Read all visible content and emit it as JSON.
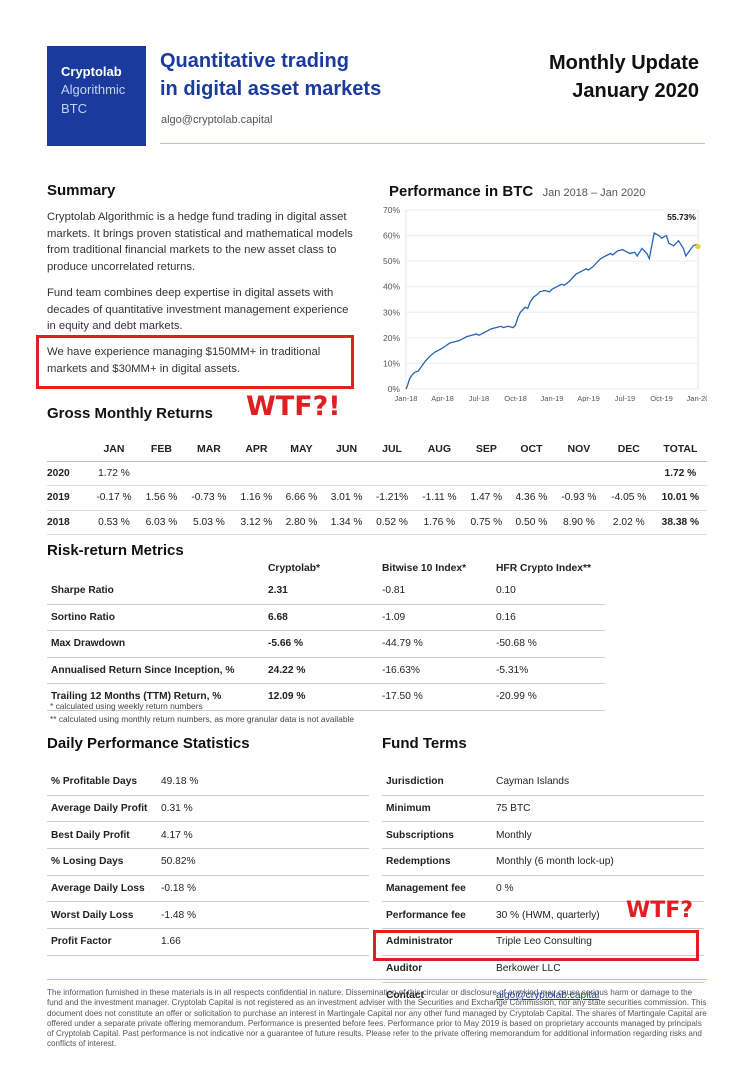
{
  "header": {
    "logo_line1": "Cryptolab",
    "logo_line2": "Algorithmic",
    "logo_line3": "BTC",
    "title_line1": "Quantitative trading",
    "title_line2": "in digital asset markets",
    "email": "algo@cryptolab.capital",
    "update_line1": "Monthly Update",
    "update_line2": "January 2020"
  },
  "summary": {
    "heading": "Summary",
    "para1": "Cryptolab Algorithmic is a hedge fund trading in digital asset markets. It brings proven statistical and mathematical models from traditional financial markets to the new asset class to produce uncorrelated returns.",
    "para2": "Fund team combines deep expertise in digital assets with decades of quantitative investment management experience in equity and debt markets.",
    "para3": "We have experience managing $150MM+ in traditional markets and $30MM+ in digital assets."
  },
  "annotations": {
    "wtf1": "WTF?!",
    "wtf2": "WTF?"
  },
  "performance": {
    "heading": "Performance in BTC",
    "range": "Jan 2018 – Jan 2020",
    "end_label": "55.73%"
  },
  "chart_data": {
    "type": "line",
    "title": "Performance in BTC",
    "subtitle": "Jan 2018 – Jan 2020",
    "y_ticks": [
      "70%",
      "60%",
      "50%",
      "40%",
      "30%",
      "20%",
      "10%",
      "0%"
    ],
    "x_ticks": [
      "Jan-18",
      "Apr-18",
      "Jul-18",
      "Oct-18",
      "Jan-19",
      "Apr-19",
      "Jul-19",
      "Oct-19",
      "Jan-20"
    ],
    "ylim": [
      0,
      70
    ],
    "grid": true,
    "annotation": "55.73%",
    "series": [
      {
        "color": "#2563b8",
        "x": [
          0,
          0.1,
          0.2,
          0.3,
          0.5,
          0.7,
          1,
          1.3,
          1.6,
          2,
          2.4,
          2.8,
          3,
          3.3,
          3.6,
          4,
          4.4,
          4.8,
          5,
          5.4,
          5.8,
          6,
          6.4,
          6.8,
          7,
          7.4,
          7.8,
          8,
          8.4,
          8.8,
          9,
          9.2,
          9.4,
          9.6,
          9.8,
          10,
          10.2,
          10.5,
          10.8,
          11,
          11.4,
          11.8,
          12,
          12.4,
          12.8,
          13,
          13.4,
          13.8,
          14,
          14.4,
          14.8,
          15,
          15.4,
          15.8,
          16,
          16.4,
          16.8,
          17,
          17.4,
          17.8,
          18,
          18.4,
          18.8,
          19,
          19.4,
          19.8,
          20,
          20.4,
          20.8,
          21,
          21.2,
          21.4,
          21.6,
          22,
          22.4,
          22.8,
          23,
          23.3,
          23.6,
          23.9,
          24
        ],
        "y": [
          0,
          1,
          2.5,
          4,
          5.5,
          6.5,
          7,
          9,
          11,
          13,
          14.5,
          15.5,
          16,
          17,
          18,
          18.5,
          19,
          20,
          20.5,
          21,
          21.5,
          21,
          22,
          23,
          23.5,
          24,
          24.5,
          24,
          24.5,
          24,
          25,
          28,
          30,
          31,
          32,
          31.5,
          34,
          36,
          37,
          38,
          38.5,
          38,
          39,
          40,
          41,
          40.5,
          42,
          44,
          45,
          46,
          47,
          46.5,
          48,
          50,
          51,
          52,
          53,
          52.5,
          54,
          54.5,
          54,
          53,
          53.5,
          52,
          55,
          53,
          51,
          61,
          60,
          59,
          59.5,
          60,
          57,
          56,
          58,
          55,
          52,
          54,
          56,
          56.5,
          55.73
        ]
      }
    ]
  },
  "gross_returns": {
    "heading": "Gross Monthly Returns",
    "columns": [
      "",
      "JAN",
      "FEB",
      "MAR",
      "APR",
      "MAY",
      "JUN",
      "JUL",
      "AUG",
      "SEP",
      "OCT",
      "NOV",
      "DEC",
      "TOTAL"
    ],
    "rows": [
      {
        "year": "2020",
        "values": [
          "1.72 %",
          "",
          "",
          "",
          "",
          "",
          "",
          "",
          "",
          "",
          "",
          ""
        ],
        "total": "1.72 %"
      },
      {
        "year": "2019",
        "values": [
          "-0.17 %",
          "1.56 %",
          "-0.73 %",
          "1.16 %",
          "6.66 %",
          "3.01 %",
          "-1.21%",
          "-1.11 %",
          "1.47 %",
          "4.36 %",
          "-0.93 %",
          "-4.05 %"
        ],
        "total": "10.01 %"
      },
      {
        "year": "2018",
        "values": [
          "0.53 %",
          "6.03 %",
          "5.03 %",
          "3.12 %",
          "2.80 %",
          "1.34 %",
          "0.52 %",
          "1.76 %",
          "0.75 %",
          "0.50 %",
          "8.90 %",
          "2.02 %"
        ],
        "total": "38.38 %"
      }
    ]
  },
  "risk_return": {
    "heading": "Risk-return Metrics",
    "columns": [
      "",
      "Cryptolab*",
      "Bitwise 10 Index*",
      "HFR Crypto Index**"
    ],
    "rows": [
      [
        "Sharpe Ratio",
        "2.31",
        "-0.81",
        "0.10"
      ],
      [
        "Sortino Ratio",
        "6.68",
        "-1.09",
        "0.16"
      ],
      [
        "Max Drawdown",
        "-5.66 %",
        "-44.79 %",
        "-50.68 %"
      ],
      [
        "Annualised Return Since Inception, %",
        "24.22 %",
        "-16.63%",
        "-5.31%"
      ],
      [
        "Trailing 12 Months (TTM) Return, %",
        "12.09 %",
        "-17.50 %",
        "-20.99 %"
      ]
    ],
    "footnote1": "*   calculated using weekly return numbers",
    "footnote2": "**  calculated using monthly return numbers, as more granular data is not available"
  },
  "daily_stats": {
    "heading": "Daily Performance Statistics",
    "rows": [
      [
        "% Profitable Days",
        "49.18 %"
      ],
      [
        "Average Daily Profit",
        "0.31 %"
      ],
      [
        "Best Daily Profit",
        "4.17 %"
      ],
      [
        "% Losing Days",
        "50.82%"
      ],
      [
        "Average Daily Loss",
        "-0.18 %"
      ],
      [
        "Worst Daily Loss",
        "-1.48 %"
      ],
      [
        "Profit Factor",
        "1.66"
      ]
    ]
  },
  "fund_terms": {
    "heading": "Fund Terms",
    "rows": [
      [
        "Jurisdiction",
        "Cayman Islands"
      ],
      [
        "Minimum",
        "75 BTC"
      ],
      [
        "Subscriptions",
        "Monthly"
      ],
      [
        "Redemptions",
        "Monthly (6 month lock-up)"
      ],
      [
        "Management fee",
        "0 %"
      ],
      [
        "Performance fee",
        "30 % (HWM, quarterly)"
      ],
      [
        "Administrator",
        "Triple Leo Consulting"
      ],
      [
        "Auditor",
        "Berkower LLC"
      ],
      [
        "Contact",
        "algo@cryptolab.capital"
      ]
    ]
  },
  "disclaimer": "The information furnished in these materials is in all respects confidential in nature. Dissemination of this circular or disclosure of any kind may cause serious harm or damage to the fund and the investment manager. Cryptolab Capital is not registered as an investment adviser with the Securities and Exchange Commission, nor any state securities commission. This document does not constitute an offer or solicitation to purchase an interest in Martingale Capital nor any other fund managed by Cryptolab Capital. The shares of Martingale Capital are offered under a separate private offering memorandum. Performance is presented before fees. Performance prior to May 2019 is based on proprietary accounts managed by principals of Cryptolab Capital. Past performance is not indicative nor a guarantee of future results. Please refer to the private offering memorandum for additional information regarding risks and conflicts of interest."
}
